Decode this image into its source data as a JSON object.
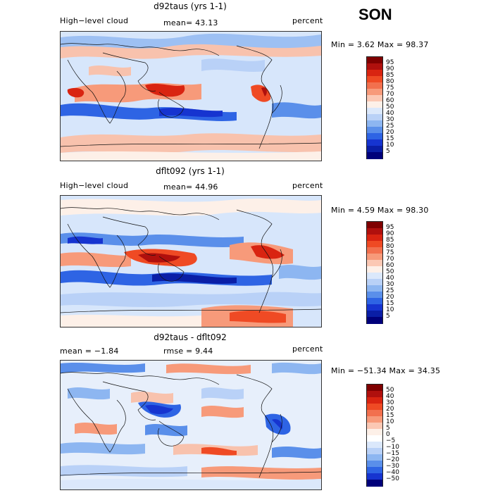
{
  "season": "SON",
  "panels": [
    {
      "title": "d92taus (yrs 1-1)",
      "left_label": "High−level cloud",
      "center_label": "mean=  43.13",
      "right_label": "percent",
      "minmax": "Min =    3.62 Max =   98.37",
      "colorbar": {
        "levels": [
          "95",
          "90",
          "85",
          "80",
          "75",
          "70",
          "60",
          "50",
          "40",
          "30",
          "25",
          "20",
          "15",
          "10",
          "5"
        ],
        "colors": [
          "#7f0000",
          "#b0100d",
          "#d92411",
          "#ef4a24",
          "#f2704e",
          "#f79a7a",
          "#fbc8b4",
          "#fdf0e8",
          "#dbe8fb",
          "#b9d1f7",
          "#8db6f1",
          "#5a8fea",
          "#2e64e4",
          "#1634d0",
          "#0a1ea6",
          "#00007a"
        ]
      }
    },
    {
      "title": "dflt092 (yrs 1-1)",
      "left_label": "High−level cloud",
      "center_label": "mean=  44.96",
      "right_label": "percent",
      "minmax": "Min =    4.59 Max =   98.30",
      "colorbar": {
        "levels": [
          "95",
          "90",
          "85",
          "80",
          "75",
          "70",
          "60",
          "50",
          "40",
          "30",
          "25",
          "20",
          "15",
          "10",
          "5"
        ],
        "colors": [
          "#7f0000",
          "#b0100d",
          "#d92411",
          "#ef4a24",
          "#f2704e",
          "#f79a7a",
          "#fbc8b4",
          "#fdf0e8",
          "#dbe8fb",
          "#b9d1f7",
          "#8db6f1",
          "#5a8fea",
          "#2e64e4",
          "#1634d0",
          "#0a1ea6",
          "#00007a"
        ]
      }
    },
    {
      "title": "d92taus - dflt092",
      "left_label": "mean =  −1.84",
      "center_label": "rmse =   9.44",
      "right_label": "percent",
      "minmax": "Min = −51.34 Max =   34.35",
      "colorbar": {
        "levels": [
          "50",
          "40",
          "30",
          "20",
          "15",
          "10",
          "5",
          "0",
          "−5",
          "−10",
          "−15",
          "−20",
          "−30",
          "−40",
          "−50"
        ],
        "colors": [
          "#7f0000",
          "#b0100d",
          "#d92411",
          "#ef4a24",
          "#f2704e",
          "#f79a7a",
          "#fbc8b4",
          "#fdf0e8",
          "#ffffff",
          "#dbe8fb",
          "#b9d1f7",
          "#8db6f1",
          "#5a8fea",
          "#2e64e4",
          "#1634d0",
          "#00007a"
        ]
      }
    }
  ]
}
